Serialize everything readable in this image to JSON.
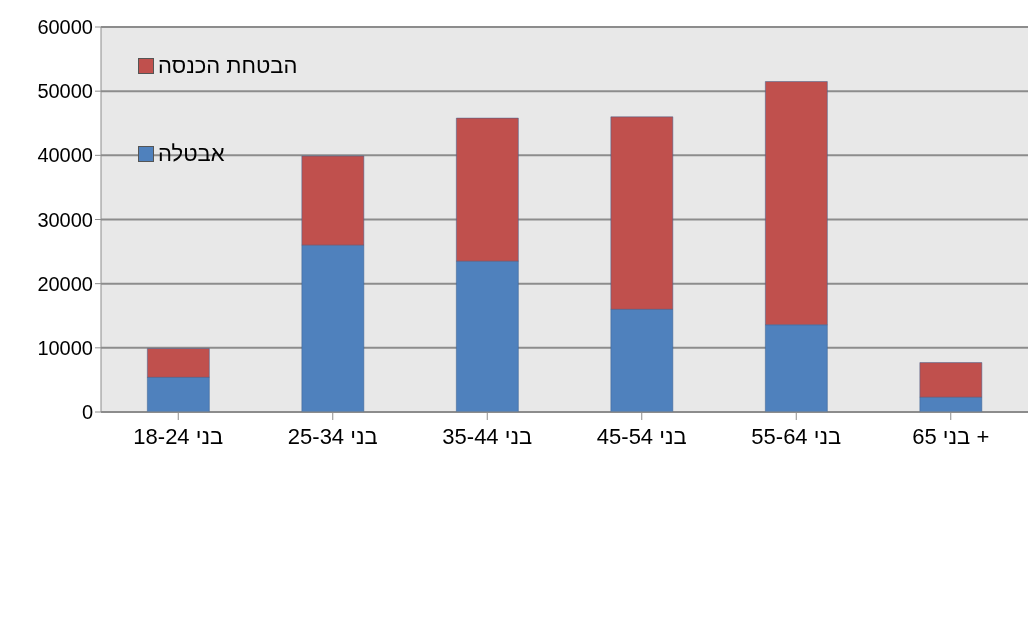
{
  "chart_data": {
    "type": "bar",
    "stacked": true,
    "categories": [
      "בני 18-24",
      "בני 25-34",
      "בני 35-44",
      "בני 45-54",
      "בני 55-64",
      "+ בני 65"
    ],
    "series": [
      {
        "name": "אבטלה",
        "color": "#4f81bd",
        "values": [
          5400,
          26000,
          23500,
          16000,
          13600,
          2300
        ]
      },
      {
        "name": "הבטחת הכנסה",
        "color": "#c0504d",
        "values": [
          4500,
          13900,
          22300,
          30000,
          37900,
          5400
        ]
      }
    ],
    "ylim": [
      0,
      60000
    ],
    "yticks": [
      0,
      10000,
      20000,
      30000,
      40000,
      50000,
      60000
    ],
    "grid": "y",
    "legend": "top left"
  }
}
